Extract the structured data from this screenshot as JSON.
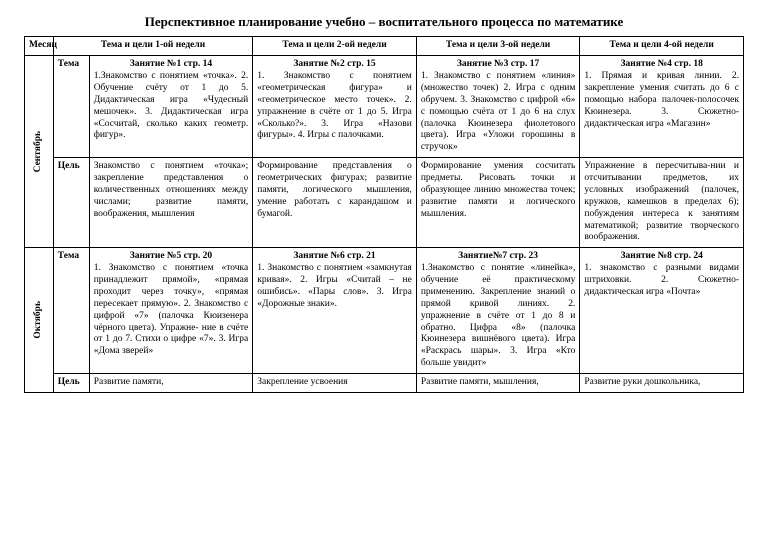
{
  "title": "Перспективное планирование учебно – воспитательного процесса по математике",
  "headers": {
    "month": "Месяц",
    "w1": "Тема и цели 1-ой недели",
    "w2": "Тема и цели 2-ой недели",
    "w3": "Тема и цели 3-ой недели",
    "w4": "Тема и цели 4-ой недели"
  },
  "labels": {
    "tema": "Тема",
    "cel": "Цель"
  },
  "months": {
    "sep": "Сентябрь",
    "oct": "Октябрь"
  },
  "sep": {
    "t1": {
      "head": "Занятие  №1 стр. 14",
      "body": "1.Знакомство с понятием «точка».\n2. Обучение счёту от 1 до 5. Дидактическая игра «Чудесный мешочек».\n3. Дидактическая игра «Сосчитай, сколько каких геометр.\nфигур»."
    },
    "t2": {
      "head": "Занятие №2 стр. 15",
      "body": "1. Знакомство с понятием «геометрическая фигура» и «геометрическое место точек».\n2. упражнение в счёте от 1 до 5. Игра «Сколько?».\n3. Игра «Назови фигуры».\n4. Игры с палочками."
    },
    "t3": {
      "head": "Занятие №3 стр. 17",
      "body": "1. Знакомство с понятием «линия» (множество точек)\n2. Игра с одним обручем.\n3. Знакомство с цифрой «6» с помощью счёта от 1 до 6 на слух (палочка Кюинезера фиолетового цвета). Игра «Уложи горошины в стручок»"
    },
    "t4": {
      "head": "Занятие №4 стр. 18",
      "body": "1. Прямая и кривая линии.\n2. закрепление умения считать до 6 с помощью набора палочек-полосочек Кюинезера.\n3. Сюжетно-дидактическая игра «Магазин»"
    },
    "c1": "Знакомство с понятием «точка»; закрепление представления о количественных отношениях между числами; развитие памяти, воображения, мышления",
    "c2": "Формирование представления о геометрических фигурах; развитие памяти, логического мышления, умение работать с карандашом и бумагой.",
    "c3": "Формирование умения сосчитать предметы. Рисовать точки и образующее линию множества точек; развитие памяти и логического мышления.",
    "c4": "Упражнение в пересчитыва-нии и отсчитывании предметов, их условных изображений (палочек, кружков, камешков в пределах 6); побуждения интереса к занятиям математикой; развитие творческого воображения."
  },
  "oct": {
    "t1": {
      "head": "Занятие №5 стр. 20",
      "body": "1. Знакомство с понятием «точка принадлежит прямой», «прямая проходит через точку», «прямая пересекает прямую».\n2. Знакомство с цифрой «7» (палочка Кюизенера чёрного цвета). Упражне-\nние  в счёте от 1 до 7. Стихи о цифре «7».\n3. Игра «Дома зверей»"
    },
    "t2": {
      "head": "Занятие №6 стр. 21",
      "body": "1. Знакомство с понятием «замкнутая кривая».\n2. Игры «Считай – не ошибись». «Пары слов».\n3. Игра «Дорожные знаки»."
    },
    "t3": {
      "head": "Занятие№7 стр. 23",
      "body": "1.Знакомство с понятие «линейка», обучение её практическому применению. Закрепление знаний о прямой кривой линиях.\n2. упражнение в счёте от 1 до 8 и обратно. Цифра «8» (палочка Кюинезера вишнёвого цвета). Игра\n«Раскрась шары».\n3. Игра «Кто больше увидит»"
    },
    "t4": {
      "head": "Занятие №8 стр. 24",
      "body": "1. знакомство с разными видами штриховки.\n2. Сюжетно-дидактическая игра «Почта»"
    },
    "c1": "Развитие памяти,",
    "c2": "Закрепление усвоения",
    "c3": "Развитие памяти, мышления,",
    "c4": "Развитие руки дошкольника,"
  }
}
